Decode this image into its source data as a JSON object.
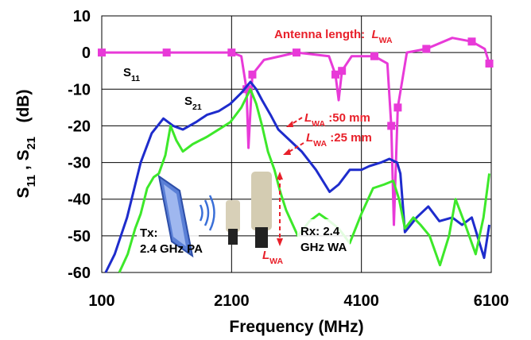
{
  "chart_data": {
    "type": "line",
    "xlabel": "Frequency (MHz)",
    "ylabel": [
      {
        "text": "S"
      },
      {
        "text": "11",
        "style": "sub"
      },
      {
        "text": " , S"
      },
      {
        "text": "21",
        "style": "sub"
      },
      {
        "text": "   (dB)"
      }
    ],
    "xlim": [
      100,
      6100
    ],
    "xticks": [
      100,
      2100,
      4100,
      6100
    ],
    "ylim": [
      -60,
      10
    ],
    "yticks": [
      10,
      0,
      -10,
      -20,
      -30,
      -40,
      -50,
      -60
    ],
    "grid": true,
    "series": [
      {
        "color": "#e83ad8",
        "markers": true,
        "x": [
          100,
          600,
          1100,
          1600,
          2100,
          2250,
          2330,
          2360,
          2420,
          2600,
          3100,
          3600,
          3700,
          3750,
          3800,
          3950,
          4300,
          4500,
          4560,
          4600,
          4660,
          4800,
          5100,
          5500,
          5800,
          6000,
          6070
        ],
        "values": [
          0,
          0,
          0,
          0,
          0,
          -1,
          -10,
          -26,
          -6,
          -2,
          0,
          -1,
          -6,
          -13,
          -5,
          -1,
          -1,
          -3,
          -20,
          -47,
          -15,
          0,
          1,
          4,
          3,
          1,
          -3
        ]
      },
      {
        "color": "#1e2ccc",
        "markers": false,
        "x": [
          160,
          300,
          490,
          700,
          870,
          1050,
          1200,
          1350,
          1550,
          1720,
          1900,
          2080,
          2250,
          2390,
          2480,
          2570,
          2700,
          2820,
          3000,
          3180,
          3400,
          3610,
          3750,
          3920,
          4100,
          4220,
          4400,
          4530,
          4650,
          4700,
          4770,
          4950,
          5130,
          5300,
          5500,
          5650,
          5800,
          5920,
          5990,
          6070
        ],
        "values": [
          -60,
          -55,
          -45,
          -30,
          -22,
          -18,
          -20,
          -21,
          -19,
          -17,
          -16,
          -14,
          -11,
          -8,
          -10,
          -13,
          -17,
          -21,
          -24,
          -27,
          -32,
          -38,
          -36,
          -32,
          -32,
          -31,
          -30,
          -29,
          -30,
          -33,
          -49,
          -45,
          -42,
          -46,
          -45,
          -47,
          -45,
          -52,
          -56,
          -47
        ]
      },
      {
        "color": "#3de82a",
        "markers": false,
        "x": [
          370,
          500,
          615,
          700,
          800,
          900,
          980,
          1080,
          1160,
          1250,
          1350,
          1500,
          1720,
          1900,
          2080,
          2250,
          2390,
          2480,
          2570,
          2660,
          2760,
          2850,
          2940,
          3120,
          3300,
          3450,
          3610,
          3750,
          3920,
          4100,
          4280,
          4450,
          4590,
          4680,
          4770,
          4900,
          5010,
          5150,
          5310,
          5450,
          5550,
          5700,
          5860,
          5980,
          6070
        ],
        "values": [
          -60,
          -55,
          -48,
          -44,
          -37,
          -34,
          -33,
          -28,
          -20,
          -24,
          -27,
          -25,
          -23,
          -21,
          -19,
          -15,
          -10,
          -14,
          -20,
          -27,
          -32,
          -38,
          -43,
          -50,
          -46,
          -44,
          -46,
          -48,
          -52,
          -44,
          -37,
          -36,
          -35,
          -40,
          -48,
          -45,
          -47,
          -50,
          -58,
          -50,
          -40,
          -47,
          -55,
          -45,
          -33
        ]
      }
    ],
    "annotations": [
      {
        "color": "#e8202a",
        "parts": [
          {
            "text": "Antenna length:  "
          },
          {
            "text": "L",
            "style": "italic"
          },
          {
            "text": "WA",
            "style": "sub"
          }
        ]
      },
      {
        "color": "#000000",
        "parts": [
          {
            "text": "S"
          },
          {
            "text": "11",
            "style": "sub"
          }
        ]
      },
      {
        "color": "#000000",
        "parts": [
          {
            "text": "S"
          },
          {
            "text": "21",
            "style": "sub"
          }
        ]
      },
      {
        "color": "#e8202a",
        "parts": [
          {
            "text": "L",
            "style": "italic"
          },
          {
            "text": "WA",
            "style": "sub"
          },
          {
            "text": " :50 mm"
          }
        ]
      },
      {
        "color": "#e8202a",
        "parts": [
          {
            "text": "L",
            "style": "italic"
          },
          {
            "text": "WA",
            "style": "sub"
          },
          {
            "text": " :25 mm"
          }
        ]
      },
      {
        "color": "#000000",
        "parts": [
          {
            "text": "Tx:"
          }
        ]
      },
      {
        "color": "#000000",
        "parts": [
          {
            "text": "2.4 GHz PA"
          }
        ]
      },
      {
        "color": "#000000",
        "parts": [
          {
            "text": "Rx: 2.4"
          }
        ]
      },
      {
        "color": "#000000",
        "parts": [
          {
            "text": "GHz WA"
          }
        ]
      },
      {
        "color": "#e8202a",
        "parts": [
          {
            "text": "L",
            "style": "italic"
          },
          {
            "text": "WA",
            "style": "sub"
          }
        ]
      }
    ]
  }
}
